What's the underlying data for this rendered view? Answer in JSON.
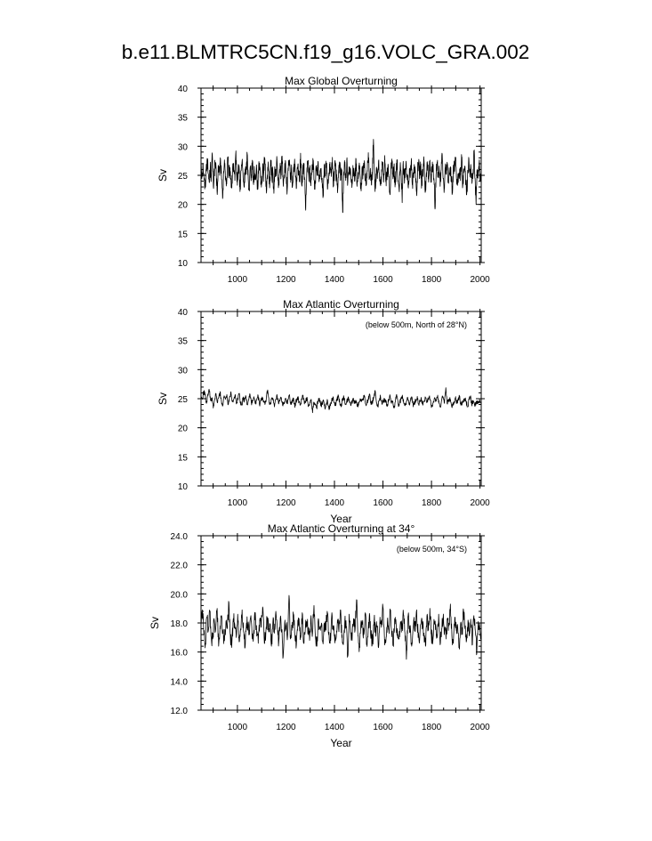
{
  "page_title": "b.e11.BLMTRC5CN.f19_g16.VOLC_GRA.002",
  "colors": {
    "line": "#000000",
    "background": "#ffffff"
  },
  "chart_data": [
    {
      "type": "line",
      "title": "Max Global Overturning",
      "subtitle": "",
      "xlabel": "",
      "ylabel": "Sv",
      "xlim": [
        850,
        2005
      ],
      "ylim": [
        10,
        40
      ],
      "xticks": [
        "1000",
        "1200",
        "1400",
        "1600",
        "1800",
        "2000"
      ],
      "yticks": [
        "10",
        "15",
        "20",
        "25",
        "30",
        "35",
        "40"
      ],
      "series": [
        {
          "x_start": 850,
          "x_end": 2005,
          "y": [
            27.5,
            25.1,
            26.8,
            24.2,
            22.9,
            26.0,
            27.9,
            25.3,
            23.8,
            26.4,
            24.7,
            28.5,
            23.1,
            25.9,
            27.2,
            24.0,
            22.4,
            26.6,
            25.5,
            27.8,
            24.3,
            21.0,
            25.7,
            26.9,
            24.8,
            23.5,
            28.1,
            25.0,
            26.3,
            24.5,
            22.8,
            27.0,
            25.6,
            24.1,
            29.2,
            23.9,
            25.4,
            26.7,
            22.2,
            25.8,
            27.4,
            24.6,
            23.0,
            26.1,
            25.2,
            28.7,
            24.4,
            22.6,
            26.5,
            25.1,
            27.6,
            23.7,
            25.9,
            24.2,
            26.8,
            22.9,
            25.3,
            27.1,
            24.9,
            23.6,
            26.2,
            25.0,
            28.0,
            24.5,
            22.7,
            26.4,
            25.7,
            23.4,
            27.3,
            24.8,
            25.5,
            21.9,
            26.0,
            25.2,
            27.7,
            24.1,
            23.3,
            26.6,
            25.4,
            28.3,
            23.8,
            25.1,
            26.9,
            24.6,
            22.5,
            25.8,
            27.5,
            24.3,
            26.1,
            23.0,
            25.6,
            27.0,
            24.7,
            22.8,
            26.3,
            25.9,
            24.0,
            28.8,
            23.5,
            25.2,
            26.7,
            24.4,
            19.0,
            25.3,
            27.2,
            24.9,
            26.0,
            23.2,
            25.7,
            27.9,
            24.2,
            22.6,
            26.5,
            25.0,
            27.4,
            23.9,
            25.8,
            26.2,
            24.5,
            21.5,
            26.8,
            25.1,
            27.1,
            24.0,
            23.6,
            25.5,
            26.4,
            24.8,
            28.1,
            23.3,
            25.9,
            26.6,
            24.3,
            22.0,
            25.6,
            27.3,
            24.7,
            26.0,
            18.6,
            25.4,
            26.9,
            24.1,
            27.6,
            23.8,
            25.2,
            26.3,
            24.6,
            22.9,
            26.7,
            25.8,
            24.4,
            27.8,
            23.1,
            25.5,
            26.1,
            24.9,
            22.3,
            26.5,
            25.0,
            27.0,
            24.2,
            23.7,
            25.7,
            28.9,
            24.5,
            26.2,
            23.4,
            25.9,
            31.2,
            24.8,
            22.7,
            26.4,
            25.3,
            27.5,
            24.0,
            23.2,
            25.6,
            26.8,
            24.3,
            28.4,
            23.9,
            25.1,
            26.0,
            24.7,
            21.8,
            25.8,
            27.2,
            24.4,
            26.5,
            23.0,
            25.4,
            27.7,
            24.1,
            22.5,
            26.3,
            25.2,
            20.3,
            27.4,
            24.6,
            25.9,
            26.7,
            24.2,
            22.8,
            26.1,
            25.5,
            27.9,
            23.6,
            25.0,
            26.4,
            24.9,
            22.1,
            25.7,
            27.1,
            24.5,
            26.6,
            23.3,
            25.3,
            28.2,
            24.0,
            22.4,
            26.2,
            25.8,
            24.7,
            27.6,
            23.8,
            25.6,
            26.9,
            24.3,
            19.2,
            25.1,
            27.3,
            24.8,
            26.0,
            23.1,
            25.9,
            28.6,
            24.4,
            22.6,
            26.5,
            25.2,
            27.0,
            23.7,
            25.4,
            26.3,
            24.6,
            21.9,
            26.8,
            25.7,
            27.5,
            24.1,
            23.5,
            25.0,
            26.1,
            24.9,
            28.0,
            23.2,
            25.8,
            26.6,
            24.2,
            22.2,
            25.5,
            27.8,
            24.7,
            26.4,
            23.6,
            25.1,
            28.9,
            24.5,
            20.0,
            26.0,
            25.3,
            27.2,
            24.0,
            25.6
          ]
        }
      ]
    },
    {
      "type": "line",
      "title": "Max Atlantic Overturning",
      "subtitle": "(below 500m, North of 28°N)",
      "xlabel": "Year",
      "ylabel": "Sv",
      "xlim": [
        850,
        2005
      ],
      "ylim": [
        10,
        40
      ],
      "xticks": [
        "1000",
        "1200",
        "1400",
        "1600",
        "1800",
        "2000"
      ],
      "yticks": [
        "10",
        "15",
        "20",
        "25",
        "30",
        "35",
        "40"
      ],
      "series": [
        {
          "x_start": 850,
          "x_end": 2005,
          "y": [
            25.4,
            24.9,
            26.3,
            25.6,
            24.2,
            25.8,
            26.6,
            24.7,
            25.1,
            23.4,
            24.8,
            25.9,
            24.3,
            25.2,
            26.1,
            24.6,
            23.8,
            25.5,
            24.9,
            25.7,
            24.0,
            25.3,
            26.2,
            24.5,
            24.9,
            25.6,
            24.1,
            25.0,
            25.9,
            24.4,
            23.9,
            25.2,
            24.7,
            25.4,
            24.0,
            24.9,
            25.8,
            24.3,
            24.6,
            25.1,
            24.2,
            24.8,
            25.5,
            23.9,
            24.6,
            25.3,
            24.4,
            24.0,
            25.1,
            26.5,
            24.5,
            24.2,
            25.0,
            24.7,
            23.6,
            24.9,
            25.4,
            24.1,
            24.6,
            25.2,
            23.8,
            24.4,
            25.0,
            24.2,
            24.8,
            25.7,
            24.0,
            24.3,
            25.1,
            23.5,
            24.7,
            25.3,
            24.4,
            23.9,
            24.8,
            25.6,
            24.1,
            24.5,
            25.2,
            23.7,
            24.3,
            24.9,
            22.6,
            24.4,
            24.0,
            23.4,
            24.6,
            25.1,
            23.8,
            24.2,
            24.8,
            23.5,
            24.1,
            24.7,
            23.3,
            24.0,
            24.6,
            25.2,
            24.3,
            23.8,
            24.9,
            25.5,
            24.2,
            23.6,
            24.8,
            25.3,
            24.0,
            24.4,
            25.0,
            24.6,
            23.9,
            24.5,
            25.1,
            24.2,
            24.7,
            23.7,
            24.3,
            25.0,
            24.5,
            24.9,
            25.6,
            24.1,
            24.4,
            24.9,
            25.8,
            24.0,
            24.5,
            25.2,
            26.4,
            24.3,
            23.8,
            24.7,
            25.3,
            24.1,
            24.6,
            25.0,
            24.4,
            23.7,
            24.9,
            25.5,
            24.2,
            24.6,
            23.4,
            24.8,
            25.4,
            24.0,
            24.3,
            24.9,
            25.6,
            24.2,
            23.8,
            24.5,
            25.1,
            24.0,
            24.7,
            25.3,
            23.6,
            24.2,
            24.8,
            25.4,
            24.1,
            24.5,
            25.0,
            23.9,
            24.6,
            25.2,
            24.3,
            24.8,
            25.5,
            24.0,
            23.7,
            24.4,
            25.0,
            24.7,
            25.6,
            24.2,
            23.5,
            24.9,
            25.3,
            24.4,
            26.9,
            24.1,
            24.6,
            25.2,
            24.0,
            23.8,
            24.5,
            25.1,
            24.3,
            24.8,
            25.4,
            23.9,
            24.2,
            24.7,
            25.0,
            24.4,
            23.6,
            24.8,
            25.3,
            24.1,
            24.5,
            24.0,
            23.9,
            24.6,
            24.2,
            24.7,
            24.3
          ]
        }
      ]
    },
    {
      "type": "line",
      "title": "Max Atlantic Overturning at 34°",
      "subtitle": "(below 500m, 34°S)",
      "xlabel": "Year",
      "ylabel": "Sv",
      "xlim": [
        850,
        2005
      ],
      "ylim": [
        12,
        24
      ],
      "xticks": [
        "1000",
        "1200",
        "1400",
        "1600",
        "1800",
        "2000"
      ],
      "yticks": [
        "12.0",
        "14.0",
        "16.0",
        "18.0",
        "20.0",
        "22.0",
        "24.0"
      ],
      "series": [
        {
          "x_start": 850,
          "x_end": 2005,
          "y": [
            17.8,
            18.9,
            17.2,
            16.6,
            18.4,
            17.5,
            18.8,
            17.0,
            16.9,
            18.2,
            17.6,
            19.0,
            16.4,
            17.8,
            18.5,
            17.3,
            16.8,
            18.1,
            17.7,
            19.4,
            17.1,
            16.5,
            18.3,
            17.9,
            17.0,
            18.6,
            16.7,
            17.6,
            18.9,
            17.4,
            16.3,
            18.0,
            17.8,
            17.2,
            18.5,
            16.9,
            17.5,
            18.7,
            17.1,
            16.6,
            18.2,
            17.7,
            19.1,
            17.0,
            16.8,
            18.4,
            17.5,
            17.9,
            16.4,
            18.1,
            17.3,
            18.8,
            17.6,
            16.7,
            18.3,
            17.4,
            15.7,
            18.0,
            17.8,
            17.1,
            19.9,
            16.9,
            17.5,
            18.6,
            17.2,
            16.5,
            18.2,
            17.9,
            17.0,
            18.7,
            16.6,
            17.4,
            18.1,
            17.7,
            16.8,
            18.5,
            17.3,
            19.2,
            17.0,
            16.4,
            18.3,
            17.6,
            17.9,
            16.7,
            18.0,
            17.5,
            18.8,
            17.2,
            16.6,
            18.4,
            17.8,
            17.1,
            16.9,
            18.2,
            17.4,
            18.9,
            17.0,
            16.5,
            18.1,
            17.7,
            15.7,
            18.6,
            17.3,
            16.8,
            18.3,
            17.5,
            19.6,
            17.1,
            16.4,
            18.0,
            17.9,
            17.2,
            18.7,
            16.6,
            17.6,
            18.5,
            17.0,
            16.8,
            18.2,
            17.4,
            17.8,
            16.3,
            18.4,
            17.7,
            19.1,
            17.1,
            16.7,
            18.0,
            17.5,
            18.8,
            17.2,
            16.5,
            18.3,
            17.9,
            17.0,
            16.9,
            18.1,
            17.6,
            18.6,
            17.3,
            15.5,
            18.4,
            17.8,
            17.1,
            16.6,
            18.2,
            17.4,
            18.9,
            17.0,
            16.8,
            18.0,
            17.7,
            17.3,
            16.4,
            18.5,
            17.5,
            19.0,
            17.2,
            16.7,
            18.1,
            17.9,
            17.0,
            18.6,
            16.5,
            17.6,
            18.3,
            17.4,
            16.9,
            18.2,
            17.8,
            19.3,
            17.1,
            16.6,
            18.4,
            17.5,
            17.7,
            16.3,
            18.0,
            17.3,
            18.8,
            17.6,
            16.8,
            18.2,
            17.2,
            17.9,
            16.5,
            18.5,
            17.4,
            15.9,
            18.1,
            17.8,
            17.1
          ]
        }
      ]
    }
  ]
}
